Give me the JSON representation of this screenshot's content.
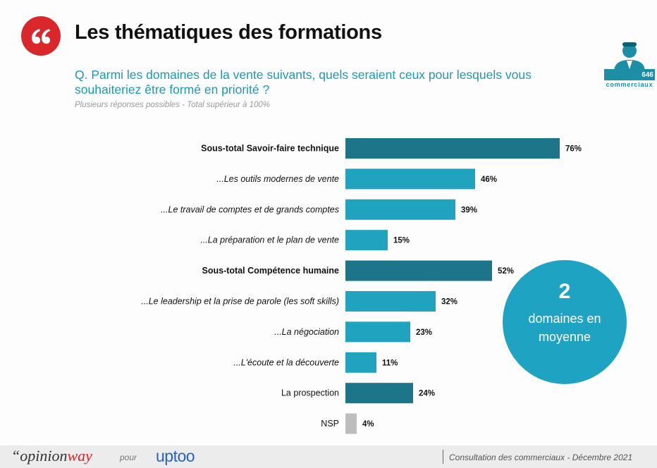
{
  "header": {
    "title": "Les thématiques des formations",
    "question": "Q. Parmi les domaines de la vente suivants, quels seraient ceux pour lesquels vous souhaiteriez être formé en priorité ?",
    "note": "Plusieurs réponses possibles - Total supérieur à 100%"
  },
  "badge": {
    "count": "646",
    "label": "commerciaux",
    "icon": "person-silhouette-icon"
  },
  "bubble": {
    "number": "2",
    "text": "domaines en moyenne"
  },
  "chart_data": {
    "type": "bar",
    "orientation": "horizontal",
    "categories": [
      "Sous-total Savoir-faire technique",
      "...Les outils modernes de vente",
      "...Le travail de comptes et de grands comptes",
      "...La préparation et le plan de vente",
      "Sous-total Compétence humaine",
      "...Le leadership et la prise de parole (les soft skills)",
      "...La négociation",
      "...L'écoute et la découverte",
      "La prospection",
      "NSP"
    ],
    "values": [
      76,
      46,
      39,
      15,
      52,
      32,
      23,
      11,
      24,
      4
    ],
    "value_labels": [
      "76%",
      "46%",
      "39%",
      "15%",
      "52%",
      "32%",
      "23%",
      "11%",
      "24%",
      "4%"
    ],
    "label_styles": [
      "bold",
      "italic",
      "italic",
      "italic",
      "bold",
      "italic",
      "italic",
      "italic",
      "normal",
      "normal"
    ],
    "bar_colors": [
      "#1c7589",
      "#1fa3bf",
      "#1fa3bf",
      "#1fa3bf",
      "#1c7589",
      "#1fa3bf",
      "#1fa3bf",
      "#1fa3bf",
      "#1c7589",
      "#bdbdbd"
    ],
    "unit": "%"
  },
  "footer": {
    "brand_main": "opinion",
    "brand_accent": "way",
    "pour": "pour",
    "partner": "uptoo",
    "right_text": "Consultation des commerciaux - Décembre 2021"
  },
  "colors": {
    "accent_red": "#d9272b",
    "teal_dark": "#1c7589",
    "teal_light": "#1fa3bf",
    "question_blue": "#1b9ab3"
  }
}
